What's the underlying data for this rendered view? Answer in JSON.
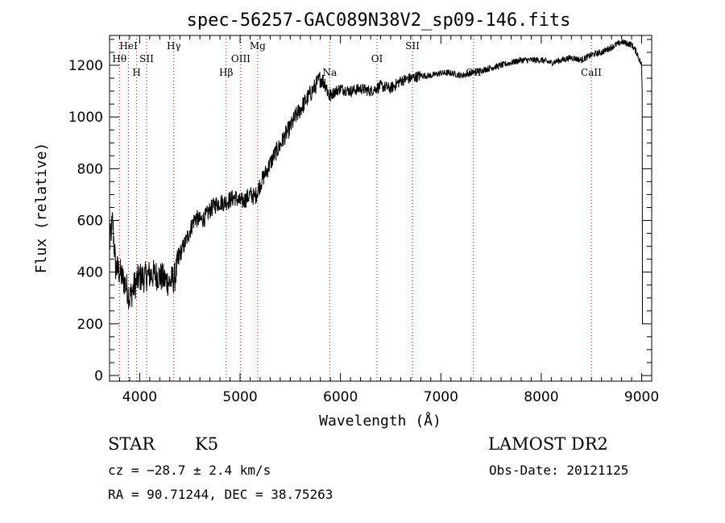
{
  "chart_data": {
    "type": "line",
    "title": "spec-56257-GAC089N38V2_sp09-146.fits",
    "xlabel": "Wavelength (Å)",
    "ylabel": "Flux (relative)",
    "xlim": [
      3700,
      9100
    ],
    "ylim": [
      0,
      1310
    ],
    "x_ticks": [
      4000,
      5000,
      6000,
      7000,
      8000,
      9000
    ],
    "y_ticks": [
      0,
      200,
      400,
      600,
      800,
      1000,
      1200
    ],
    "series": [
      {
        "x": [
          3700,
          3730,
          3760,
          3800,
          3850,
          3880,
          3900,
          3920,
          3950,
          3980,
          4000,
          4050,
          4100,
          4150,
          4200,
          4250,
          4300,
          4350,
          4400,
          4450,
          4500,
          4550,
          4600,
          4650,
          4700,
          4750,
          4800,
          4850,
          4900,
          4950,
          5000,
          5050,
          5100,
          5150,
          5200,
          5250,
          5300,
          5350,
          5400,
          5450,
          5500,
          5550,
          5600,
          5650,
          5700,
          5750,
          5800,
          5850,
          5890,
          5950,
          6000,
          6100,
          6200,
          6300,
          6400,
          6500,
          6600,
          6700,
          6800,
          6900,
          7000,
          7100,
          7200,
          7300,
          7400,
          7500,
          7600,
          7700,
          7800,
          7900,
          8000,
          8100,
          8200,
          8300,
          8400,
          8500,
          8600,
          8700,
          8800,
          8900,
          8950,
          9000
        ],
        "y": [
          500,
          600,
          420,
          400,
          360,
          330,
          300,
          320,
          350,
          370,
          380,
          380,
          390,
          390,
          385,
          370,
          360,
          380,
          470,
          510,
          560,
          610,
          600,
          610,
          640,
          660,
          670,
          670,
          680,
          690,
          670,
          680,
          700,
          690,
          740,
          780,
          820,
          860,
          890,
          930,
          960,
          1000,
          1030,
          1060,
          1090,
          1120,
          1150,
          1130,
          1080,
          1100,
          1110,
          1100,
          1110,
          1100,
          1120,
          1110,
          1140,
          1150,
          1160,
          1160,
          1170,
          1170,
          1160,
          1170,
          1180,
          1190,
          1200,
          1210,
          1220,
          1220,
          1220,
          1210,
          1220,
          1230,
          1220,
          1240,
          1250,
          1270,
          1290,
          1280,
          1250,
          1200
        ]
      }
    ],
    "spectral_lines": [
      {
        "label": "Hθ",
        "wavelength": 3798,
        "row": 2
      },
      {
        "label": "HeI",
        "wavelength": 3889,
        "row": 1
      },
      {
        "label": "H",
        "wavelength": 3970,
        "row": 3
      },
      {
        "label": "SII",
        "wavelength": 4069,
        "row": 2
      },
      {
        "label": "Hγ",
        "wavelength": 4340,
        "row": 1
      },
      {
        "label": "Hβ",
        "wavelength": 4861,
        "row": 3
      },
      {
        "label": "OIII",
        "wavelength": 5007,
        "row": 2
      },
      {
        "label": "Mg",
        "wavelength": 5175,
        "row": 1
      },
      {
        "label": "Na",
        "wavelength": 5893,
        "row": 3
      },
      {
        "label": "OI",
        "wavelength": 6364,
        "row": 2
      },
      {
        "label": "SII",
        "wavelength": 6717,
        "row": 1
      },
      {
        "label": "OII",
        "wavelength": 7325,
        "row": 3
      },
      {
        "label": "CaII",
        "wavelength": 8498,
        "row": 3
      }
    ],
    "grid": false
  },
  "info": {
    "class_label": "STAR",
    "subclass": "K5",
    "survey": "LAMOST DR2",
    "cz": "cz = −28.7 ± 2.4 km/s",
    "obs_date": "Obs-Date: 20121125",
    "coords": "RA =  90.71244, DEC =  38.75263"
  },
  "colors": {
    "spectrum": "#000000",
    "line_markers": "#c00000",
    "axes": "#000000"
  }
}
